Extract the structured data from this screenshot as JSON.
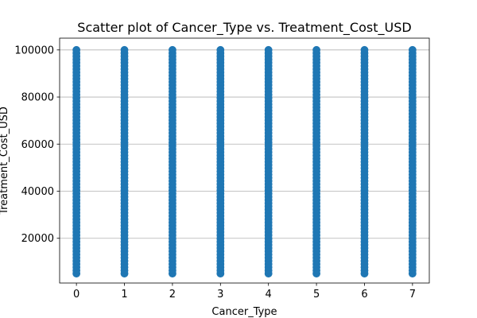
{
  "chart_data": {
    "type": "scatter",
    "title": "Scatter plot of Cancer_Type vs. Treatment_Cost_USD",
    "xlabel": "Cancer_Type",
    "ylabel": "Treatment_Cost_USD",
    "xlim": [
      -0.35,
      7.35
    ],
    "ylim": [
      1000,
      105000
    ],
    "x_ticks": [
      0,
      1,
      2,
      3,
      4,
      5,
      6,
      7
    ],
    "y_ticks": [
      20000,
      40000,
      60000,
      80000,
      100000
    ],
    "grid": "y",
    "series": [
      {
        "color": "#1f77b4",
        "points": [
          {
            "x": 0,
            "y_min": 5000,
            "y_max": 100000
          },
          {
            "x": 1,
            "y_min": 5000,
            "y_max": 100000
          },
          {
            "x": 2,
            "y_min": 5000,
            "y_max": 100000
          },
          {
            "x": 3,
            "y_min": 5000,
            "y_max": 100000
          },
          {
            "x": 4,
            "y_min": 5000,
            "y_max": 100000
          },
          {
            "x": 5,
            "y_min": 5000,
            "y_max": 100000
          },
          {
            "x": 6,
            "y_min": 5000,
            "y_max": 100000
          },
          {
            "x": 7,
            "y_min": 5000,
            "y_max": 100000
          }
        ]
      }
    ]
  }
}
